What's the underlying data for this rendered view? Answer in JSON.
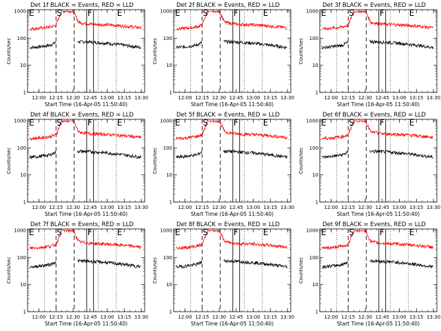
{
  "figure": {
    "xlabel": "Start Time (16-Apr-05 11:50:40)",
    "ylabel": "Counts/sec",
    "x_ticks": [
      "12:00",
      "12:15",
      "12:30",
      "12:45",
      "13:00",
      "13:15",
      "13:30"
    ],
    "y_ticks": [
      "1",
      "10",
      "100",
      "1000"
    ],
    "event_markers": {
      "E": "E",
      "S": "S",
      "F": "F",
      "E2": "E"
    }
  },
  "chart_data": [
    {
      "type": "line",
      "title": "Det 1f BLACK = Events, RED = LLD",
      "ylabel": "Counts/sec",
      "xlabel": "Start Time (16-Apr-05 11:50:40)",
      "xlim": [
        "11:50",
        "13:33"
      ],
      "ylim": [
        1,
        1000
      ],
      "y_scale": "log",
      "grid": false,
      "series": [
        {
          "name": "BLACK = Events",
          "color": "#000000",
          "x": [
            "11:52",
            "12:00",
            "12:10",
            "12:15",
            "12:30",
            "12:34",
            "12:45",
            "13:00",
            "13:15",
            "13:30"
          ],
          "values": [
            45,
            48,
            55,
            70,
            null,
            75,
            72,
            65,
            55,
            45
          ]
        },
        {
          "name": "RED = LLD",
          "color": "#ff0000",
          "x": [
            "11:52",
            "12:00",
            "12:10",
            "12:15",
            "12:20",
            "12:30",
            "12:35",
            "12:45",
            "13:00",
            "13:15",
            "13:30"
          ],
          "values": [
            220,
            230,
            260,
            300,
            1000,
            1000,
            380,
            330,
            310,
            280,
            240
          ]
        }
      ],
      "vlines_dashed": [
        "12:15",
        "12:31"
      ],
      "vlines_solid": [
        "12:42",
        "12:48"
      ],
      "vlines_dotted": [
        "12:05",
        "12:52",
        "13:08"
      ]
    },
    {
      "type": "line",
      "title": "Det 2f BLACK = Events, RED = LLD",
      "ylabel": "Counts/sec",
      "xlabel": "Start Time (16-Apr-05 11:50:40)",
      "xlim": [
        "11:50",
        "13:33"
      ],
      "ylim": [
        1,
        1000
      ],
      "y_scale": "log",
      "grid": false,
      "series": [
        {
          "name": "BLACK = Events",
          "color": "#000000",
          "x": [
            "11:52",
            "12:00",
            "12:10",
            "12:15",
            "12:30",
            "12:34",
            "12:45",
            "13:00",
            "13:15",
            "13:30"
          ],
          "values": [
            45,
            48,
            55,
            70,
            null,
            75,
            72,
            65,
            55,
            45
          ]
        },
        {
          "name": "RED = LLD",
          "color": "#ff0000",
          "x": [
            "11:52",
            "12:00",
            "12:10",
            "12:15",
            "12:20",
            "12:30",
            "12:35",
            "12:45",
            "13:00",
            "13:15",
            "13:30"
          ],
          "values": [
            220,
            230,
            260,
            300,
            1000,
            1000,
            380,
            330,
            310,
            280,
            240
          ]
        }
      ],
      "vlines_dashed": [
        "12:15",
        "12:31"
      ],
      "vlines_solid": [
        "12:42",
        "12:48"
      ],
      "vlines_dotted": [
        "12:05",
        "12:52",
        "13:08"
      ]
    },
    {
      "type": "line",
      "title": "Det 3f BLACK = Events, RED = LLD",
      "ylabel": "Counts/sec",
      "xlabel": "Start Time (16-Apr-05 11:50:40)",
      "xlim": [
        "11:50",
        "13:33"
      ],
      "ylim": [
        1,
        1000
      ],
      "y_scale": "log",
      "grid": false,
      "series": [
        {
          "name": "BLACK = Events",
          "color": "#000000",
          "x": [
            "11:52",
            "12:00",
            "12:10",
            "12:15",
            "12:30",
            "12:34",
            "12:45",
            "13:00",
            "13:15",
            "13:30"
          ],
          "values": [
            45,
            48,
            55,
            70,
            null,
            75,
            72,
            65,
            55,
            45
          ]
        },
        {
          "name": "RED = LLD",
          "color": "#ff0000",
          "x": [
            "11:52",
            "12:00",
            "12:10",
            "12:15",
            "12:20",
            "12:30",
            "12:35",
            "12:45",
            "13:00",
            "13:15",
            "13:30"
          ],
          "values": [
            220,
            230,
            260,
            300,
            1000,
            1000,
            380,
            330,
            310,
            280,
            240
          ]
        }
      ],
      "vlines_dashed": [
        "12:15",
        "12:31"
      ],
      "vlines_solid": [
        "12:42",
        "12:48"
      ],
      "vlines_dotted": [
        "12:05",
        "12:52",
        "13:08"
      ]
    },
    {
      "type": "line",
      "title": "Det 4f BLACK = Events, RED = LLD",
      "ylabel": "Counts/sec",
      "xlabel": "Start Time (16-Apr-05 11:50:40)",
      "xlim": [
        "11:50",
        "13:33"
      ],
      "ylim": [
        1,
        1000
      ],
      "y_scale": "log",
      "grid": false,
      "series": [
        {
          "name": "BLACK = Events",
          "color": "#000000",
          "x": [
            "11:52",
            "12:00",
            "12:10",
            "12:15",
            "12:30",
            "12:34",
            "12:45",
            "13:00",
            "13:15",
            "13:30"
          ],
          "values": [
            45,
            48,
            55,
            70,
            null,
            75,
            72,
            65,
            55,
            45
          ]
        },
        {
          "name": "RED = LLD",
          "color": "#ff0000",
          "x": [
            "11:52",
            "12:00",
            "12:10",
            "12:15",
            "12:20",
            "12:30",
            "12:35",
            "12:45",
            "13:00",
            "13:15",
            "13:30"
          ],
          "values": [
            220,
            230,
            260,
            300,
            1000,
            1000,
            380,
            330,
            310,
            280,
            240
          ]
        }
      ],
      "vlines_dashed": [
        "12:15",
        "12:31"
      ],
      "vlines_solid": [
        "12:42",
        "12:48"
      ],
      "vlines_dotted": [
        "12:05",
        "12:52",
        "13:08"
      ]
    },
    {
      "type": "line",
      "title": "Det 5f BLACK = Events, RED = LLD",
      "ylabel": "Counts/sec",
      "xlabel": "Start Time (16-Apr-05 11:50:40)",
      "xlim": [
        "11:50",
        "13:33"
      ],
      "ylim": [
        1,
        1000
      ],
      "y_scale": "log",
      "grid": false,
      "series": [
        {
          "name": "BLACK = Events",
          "color": "#000000",
          "x": [
            "11:52",
            "12:00",
            "12:10",
            "12:15",
            "12:30",
            "12:34",
            "12:45",
            "13:00",
            "13:15",
            "13:30"
          ],
          "values": [
            45,
            48,
            55,
            70,
            null,
            75,
            72,
            65,
            55,
            45
          ]
        },
        {
          "name": "RED = LLD",
          "color": "#ff0000",
          "x": [
            "11:52",
            "12:00",
            "12:10",
            "12:15",
            "12:20",
            "12:30",
            "12:35",
            "12:45",
            "13:00",
            "13:15",
            "13:30"
          ],
          "values": [
            220,
            230,
            260,
            300,
            1000,
            1000,
            380,
            330,
            310,
            280,
            240
          ]
        }
      ],
      "vlines_dashed": [
        "12:15",
        "12:31"
      ],
      "vlines_solid": [
        "12:42",
        "12:48"
      ],
      "vlines_dotted": [
        "12:05",
        "12:52",
        "13:08"
      ]
    },
    {
      "type": "line",
      "title": "Det 6f BLACK = Events, RED = LLD",
      "ylabel": "Counts/sec",
      "xlabel": "Start Time (16-Apr-05 11:50:40)",
      "xlim": [
        "11:50",
        "13:33"
      ],
      "ylim": [
        1,
        1000
      ],
      "y_scale": "log",
      "grid": false,
      "series": [
        {
          "name": "BLACK = Events",
          "color": "#000000",
          "x": [
            "11:52",
            "12:00",
            "12:10",
            "12:15",
            "12:30",
            "12:34",
            "12:45",
            "13:00",
            "13:15",
            "13:30"
          ],
          "values": [
            45,
            48,
            55,
            70,
            null,
            75,
            72,
            65,
            55,
            45
          ]
        },
        {
          "name": "RED = LLD",
          "color": "#ff0000",
          "x": [
            "11:52",
            "12:00",
            "12:10",
            "12:15",
            "12:20",
            "12:30",
            "12:35",
            "12:45",
            "13:00",
            "13:15",
            "13:30"
          ],
          "values": [
            220,
            230,
            260,
            300,
            1000,
            1000,
            380,
            330,
            310,
            280,
            240
          ]
        }
      ],
      "vlines_dashed": [
        "12:15",
        "12:31"
      ],
      "vlines_solid": [
        "12:42",
        "12:48"
      ],
      "vlines_dotted": [
        "12:05",
        "12:52",
        "13:08"
      ]
    },
    {
      "type": "line",
      "title": "Det 7f BLACK = Events, RED = LLD",
      "ylabel": "Counts/sec",
      "xlabel": "Start Time (16-Apr-05 11:50:40)",
      "xlim": [
        "11:50",
        "13:33"
      ],
      "ylim": [
        1,
        1000
      ],
      "y_scale": "log",
      "grid": false,
      "series": [
        {
          "name": "BLACK = Events",
          "color": "#000000",
          "x": [
            "11:52",
            "12:00",
            "12:10",
            "12:15",
            "12:30",
            "12:34",
            "12:45",
            "13:00",
            "13:15",
            "13:30"
          ],
          "values": [
            45,
            48,
            55,
            70,
            null,
            75,
            72,
            65,
            55,
            45
          ]
        },
        {
          "name": "RED = LLD",
          "color": "#ff0000",
          "x": [
            "11:52",
            "12:00",
            "12:10",
            "12:15",
            "12:20",
            "12:30",
            "12:35",
            "12:45",
            "13:00",
            "13:15",
            "13:30"
          ],
          "values": [
            220,
            230,
            260,
            300,
            1000,
            1000,
            380,
            330,
            310,
            280,
            240
          ]
        }
      ],
      "vlines_dashed": [
        "12:15",
        "12:31"
      ],
      "vlines_solid": [
        "12:42",
        "12:48"
      ],
      "vlines_dotted": [
        "12:05",
        "12:52",
        "13:08"
      ]
    },
    {
      "type": "line",
      "title": "Det 8f BLACK = Events, RED = LLD",
      "ylabel": "Counts/sec",
      "xlabel": "Start Time (16-Apr-05 11:50:40)",
      "xlim": [
        "11:50",
        "13:33"
      ],
      "ylim": [
        1,
        1000
      ],
      "y_scale": "log",
      "grid": false,
      "series": [
        {
          "name": "BLACK = Events",
          "color": "#000000",
          "x": [
            "11:52",
            "12:00",
            "12:10",
            "12:15",
            "12:30",
            "12:34",
            "12:45",
            "13:00",
            "13:15",
            "13:30"
          ],
          "values": [
            45,
            48,
            55,
            70,
            null,
            75,
            72,
            65,
            55,
            45
          ]
        },
        {
          "name": "RED = LLD",
          "color": "#ff0000",
          "x": [
            "11:52",
            "12:00",
            "12:10",
            "12:15",
            "12:20",
            "12:30",
            "12:35",
            "12:45",
            "13:00",
            "13:15",
            "13:30"
          ],
          "values": [
            220,
            230,
            260,
            300,
            1000,
            1000,
            380,
            330,
            310,
            280,
            240
          ]
        }
      ],
      "vlines_dashed": [
        "12:15",
        "12:31"
      ],
      "vlines_solid": [
        "12:42",
        "12:48"
      ],
      "vlines_dotted": [
        "12:05",
        "12:52",
        "13:08"
      ]
    },
    {
      "type": "line",
      "title": "Det 9f BLACK = Events, RED = LLD",
      "ylabel": "Counts/sec",
      "xlabel": "Start Time (16-Apr-05 11:50:40)",
      "xlim": [
        "11:50",
        "13:33"
      ],
      "ylim": [
        1,
        1000
      ],
      "y_scale": "log",
      "grid": false,
      "series": [
        {
          "name": "BLACK = Events",
          "color": "#000000",
          "x": [
            "11:52",
            "12:00",
            "12:10",
            "12:15",
            "12:30",
            "12:34",
            "12:45",
            "13:00",
            "13:15",
            "13:30"
          ],
          "values": [
            45,
            48,
            55,
            70,
            null,
            75,
            72,
            65,
            55,
            45
          ]
        },
        {
          "name": "RED = LLD",
          "color": "#ff0000",
          "x": [
            "11:52",
            "12:00",
            "12:10",
            "12:15",
            "12:20",
            "12:30",
            "12:35",
            "12:45",
            "13:00",
            "13:15",
            "13:30"
          ],
          "values": [
            220,
            230,
            260,
            300,
            1000,
            1000,
            380,
            330,
            310,
            280,
            240
          ]
        }
      ],
      "vlines_dashed": [
        "12:15",
        "12:31"
      ],
      "vlines_solid": [
        "12:42",
        "12:48"
      ],
      "vlines_dotted": [
        "12:05",
        "12:52",
        "13:08"
      ]
    }
  ]
}
